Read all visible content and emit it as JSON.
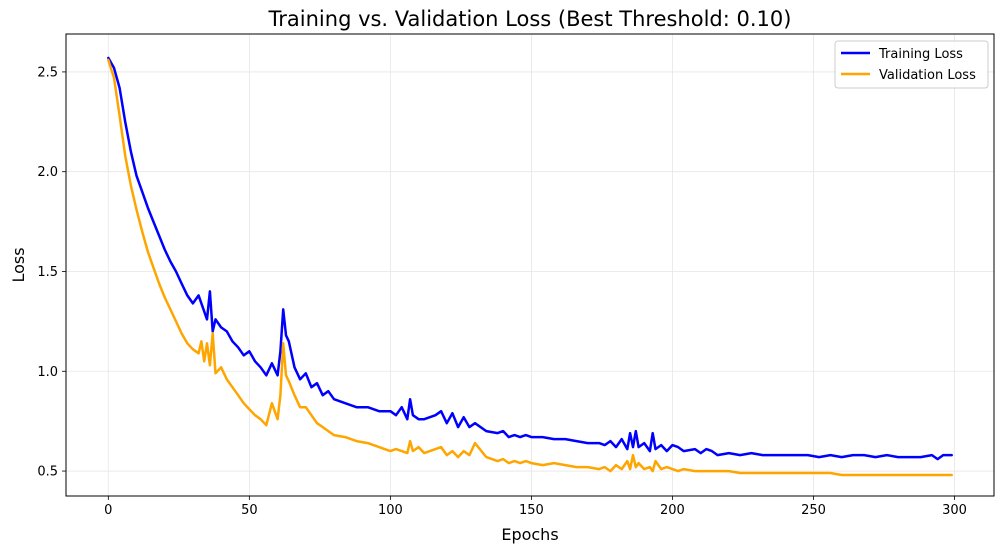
{
  "chart_data": {
    "type": "line",
    "title": "Training vs. Validation Loss (Best Threshold: 0.10)",
    "xlabel": "Epochs",
    "ylabel": "Loss",
    "xlim": [
      -15,
      314
    ],
    "ylim": [
      0.375,
      2.69
    ],
    "x_ticks": [
      0,
      50,
      100,
      150,
      200,
      250,
      300
    ],
    "y_ticks": [
      0.5,
      1.0,
      1.5,
      2.0,
      2.5
    ],
    "x_tick_labels": [
      "0",
      "50",
      "100",
      "150",
      "200",
      "250",
      "300"
    ],
    "y_tick_labels": [
      "0.5",
      "1.0",
      "1.5",
      "2.0",
      "2.5"
    ],
    "grid": true,
    "legend_position": "top-right",
    "series": [
      {
        "name": "Training Loss",
        "color": "#0000ff",
        "x": [
          0,
          2,
          4,
          6,
          8,
          10,
          12,
          14,
          16,
          18,
          20,
          22,
          24,
          26,
          28,
          30,
          32,
          34,
          35,
          36,
          37,
          38,
          40,
          42,
          44,
          46,
          48,
          50,
          52,
          54,
          56,
          58,
          60,
          61,
          62,
          63,
          64,
          66,
          68,
          70,
          72,
          74,
          76,
          78,
          80,
          84,
          88,
          92,
          96,
          100,
          102,
          104,
          106,
          107,
          108,
          110,
          112,
          116,
          118,
          120,
          122,
          124,
          126,
          128,
          130,
          134,
          138,
          140,
          142,
          144,
          146,
          148,
          150,
          154,
          158,
          162,
          166,
          170,
          174,
          176,
          178,
          180,
          182,
          184,
          185,
          186,
          187,
          188,
          190,
          192,
          193,
          194,
          196,
          198,
          200,
          202,
          204,
          208,
          210,
          212,
          214,
          216,
          220,
          224,
          228,
          232,
          236,
          240,
          244,
          248,
          252,
          256,
          260,
          264,
          268,
          272,
          276,
          280,
          284,
          288,
          292,
          294,
          296,
          299
        ],
        "values": [
          2.57,
          2.52,
          2.42,
          2.25,
          2.1,
          1.98,
          1.9,
          1.82,
          1.75,
          1.68,
          1.61,
          1.55,
          1.5,
          1.44,
          1.38,
          1.34,
          1.38,
          1.3,
          1.26,
          1.4,
          1.2,
          1.26,
          1.22,
          1.2,
          1.15,
          1.12,
          1.08,
          1.1,
          1.05,
          1.02,
          0.98,
          1.04,
          0.98,
          1.1,
          1.31,
          1.18,
          1.15,
          1.02,
          0.96,
          0.99,
          0.92,
          0.94,
          0.88,
          0.9,
          0.86,
          0.84,
          0.82,
          0.82,
          0.8,
          0.8,
          0.78,
          0.82,
          0.76,
          0.86,
          0.78,
          0.76,
          0.76,
          0.78,
          0.8,
          0.74,
          0.79,
          0.72,
          0.77,
          0.72,
          0.74,
          0.7,
          0.69,
          0.7,
          0.67,
          0.68,
          0.67,
          0.68,
          0.67,
          0.67,
          0.66,
          0.66,
          0.65,
          0.64,
          0.64,
          0.63,
          0.65,
          0.62,
          0.66,
          0.61,
          0.69,
          0.62,
          0.7,
          0.62,
          0.64,
          0.6,
          0.69,
          0.61,
          0.63,
          0.6,
          0.63,
          0.62,
          0.6,
          0.61,
          0.59,
          0.61,
          0.6,
          0.58,
          0.59,
          0.58,
          0.59,
          0.58,
          0.58,
          0.58,
          0.58,
          0.58,
          0.57,
          0.58,
          0.57,
          0.58,
          0.58,
          0.57,
          0.58,
          0.57,
          0.57,
          0.57,
          0.58,
          0.56,
          0.58,
          0.58
        ]
      },
      {
        "name": "Validation Loss",
        "color": "#ffa500",
        "x": [
          0,
          2,
          4,
          6,
          8,
          10,
          12,
          14,
          16,
          18,
          20,
          22,
          24,
          26,
          28,
          30,
          32,
          33,
          34,
          35,
          36,
          37,
          38,
          40,
          42,
          44,
          46,
          48,
          50,
          52,
          54,
          56,
          58,
          60,
          61,
          62,
          63,
          64,
          66,
          68,
          70,
          72,
          74,
          76,
          78,
          80,
          84,
          88,
          92,
          96,
          100,
          102,
          104,
          106,
          107,
          108,
          110,
          112,
          116,
          118,
          120,
          122,
          124,
          126,
          128,
          130,
          134,
          138,
          140,
          142,
          144,
          146,
          148,
          150,
          154,
          158,
          162,
          166,
          170,
          174,
          176,
          178,
          180,
          182,
          184,
          185,
          186,
          187,
          188,
          190,
          192,
          193,
          194,
          196,
          198,
          200,
          202,
          204,
          208,
          212,
          216,
          220,
          224,
          228,
          232,
          236,
          240,
          244,
          248,
          252,
          256,
          260,
          264,
          268,
          272,
          276,
          280,
          284,
          288,
          292,
          294,
          296,
          299
        ],
        "values": [
          2.56,
          2.47,
          2.28,
          2.08,
          1.93,
          1.81,
          1.7,
          1.6,
          1.52,
          1.44,
          1.37,
          1.31,
          1.25,
          1.19,
          1.14,
          1.11,
          1.09,
          1.15,
          1.05,
          1.14,
          1.03,
          1.19,
          0.99,
          1.02,
          0.96,
          0.92,
          0.88,
          0.84,
          0.81,
          0.78,
          0.76,
          0.73,
          0.84,
          0.76,
          0.88,
          1.14,
          0.98,
          0.95,
          0.88,
          0.82,
          0.82,
          0.78,
          0.74,
          0.72,
          0.7,
          0.68,
          0.67,
          0.65,
          0.64,
          0.62,
          0.6,
          0.61,
          0.6,
          0.59,
          0.65,
          0.6,
          0.62,
          0.59,
          0.61,
          0.62,
          0.58,
          0.6,
          0.57,
          0.6,
          0.58,
          0.64,
          0.57,
          0.55,
          0.56,
          0.54,
          0.55,
          0.54,
          0.55,
          0.54,
          0.53,
          0.54,
          0.53,
          0.52,
          0.52,
          0.51,
          0.52,
          0.5,
          0.53,
          0.51,
          0.55,
          0.51,
          0.58,
          0.52,
          0.54,
          0.51,
          0.52,
          0.5,
          0.55,
          0.51,
          0.52,
          0.51,
          0.5,
          0.51,
          0.5,
          0.5,
          0.5,
          0.5,
          0.49,
          0.49,
          0.49,
          0.49,
          0.49,
          0.49,
          0.49,
          0.49,
          0.49,
          0.48,
          0.48,
          0.48,
          0.48,
          0.48,
          0.48,
          0.48,
          0.48,
          0.48,
          0.48,
          0.48,
          0.48
        ]
      }
    ]
  }
}
